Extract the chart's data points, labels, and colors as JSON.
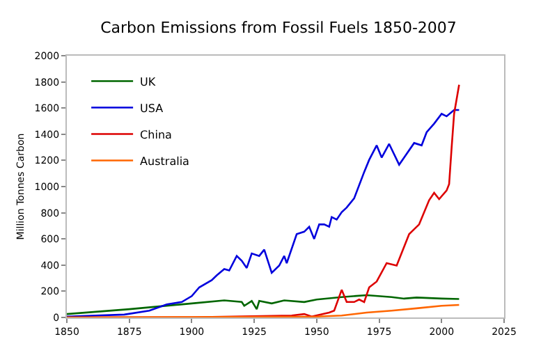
{
  "chart_data": {
    "type": "line",
    "title": "Carbon Emissions from Fossil Fuels 1850-2007",
    "ylabel": "Million Tonnes Carbon",
    "xlim": [
      1850,
      2025
    ],
    "xticks": [
      1850,
      1875,
      1900,
      1925,
      1950,
      1975,
      2000,
      2025
    ],
    "ylim": [
      0,
      2000
    ],
    "yticks": [
      0,
      200,
      400,
      600,
      800,
      1000,
      1200,
      1400,
      1600,
      1800,
      2000
    ],
    "grid": false,
    "legend": "top left",
    "marker": "none",
    "line_style": "solid",
    "series": [
      {
        "name": "UK",
        "color": "#006600",
        "x": [
          1850,
          1875,
          1900,
          1913,
          1920,
          1921,
          1924,
          1926,
          1927,
          1932,
          1937,
          1945,
          1950,
          1960,
          1970,
          1980,
          1985,
          1990,
          2000,
          2007
        ],
        "values": [
          26,
          63,
          107,
          130,
          118,
          89,
          126,
          63,
          126,
          107,
          130,
          118,
          137,
          156,
          170,
          156,
          144,
          152,
          144,
          141
        ]
      },
      {
        "name": "USA",
        "color": "#0000dd",
        "x": [
          1850,
          1873,
          1883,
          1890,
          1896,
          1900,
          1903,
          1908,
          1910,
          1913,
          1915,
          1918,
          1920,
          1922,
          1924,
          1927,
          1929,
          1932,
          1935,
          1937,
          1938,
          1942,
          1945,
          1947,
          1949,
          1951,
          1953,
          1955,
          1956,
          1958,
          1960,
          1962,
          1965,
          1969,
          1971,
          1974,
          1976,
          1979,
          1983,
          1985,
          1989,
          1992,
          1994,
          1997,
          2000,
          2002,
          2005,
          2007
        ],
        "values": [
          7,
          22,
          52,
          100,
          118,
          163,
          230,
          285,
          322,
          370,
          359,
          470,
          433,
          378,
          489,
          470,
          518,
          341,
          396,
          470,
          415,
          637,
          655,
          693,
          600,
          711,
          711,
          693,
          767,
          748,
          804,
          840,
          910,
          1111,
          1204,
          1315,
          1222,
          1326,
          1167,
          1222,
          1333,
          1315,
          1415,
          1481,
          1556,
          1537,
          1585,
          1585
        ]
      },
      {
        "name": "China",
        "color": "#dd0000",
        "x": [
          1850,
          1900,
          1940,
          1945,
          1948,
          1955,
          1957,
          1960,
          1962,
          1965,
          1967,
          1969,
          1971,
          1974,
          1978,
          1982,
          1987,
          1991,
          1995,
          1997,
          1999,
          2002,
          2003,
          2004,
          2005,
          2007
        ],
        "values": [
          0,
          1,
          15,
          26,
          7,
          37,
          52,
          211,
          118,
          118,
          137,
          118,
          230,
          274,
          415,
          396,
          637,
          711,
          896,
          952,
          904,
          970,
          1019,
          1296,
          1556,
          1778
        ]
      },
      {
        "name": "Australia",
        "color": "#ff6600",
        "x": [
          1850,
          1900,
          1950,
          1960,
          1970,
          1980,
          1990,
          2000,
          2007
        ],
        "values": [
          0,
          2,
          7,
          15,
          37,
          52,
          70,
          89,
          96
        ]
      }
    ]
  }
}
